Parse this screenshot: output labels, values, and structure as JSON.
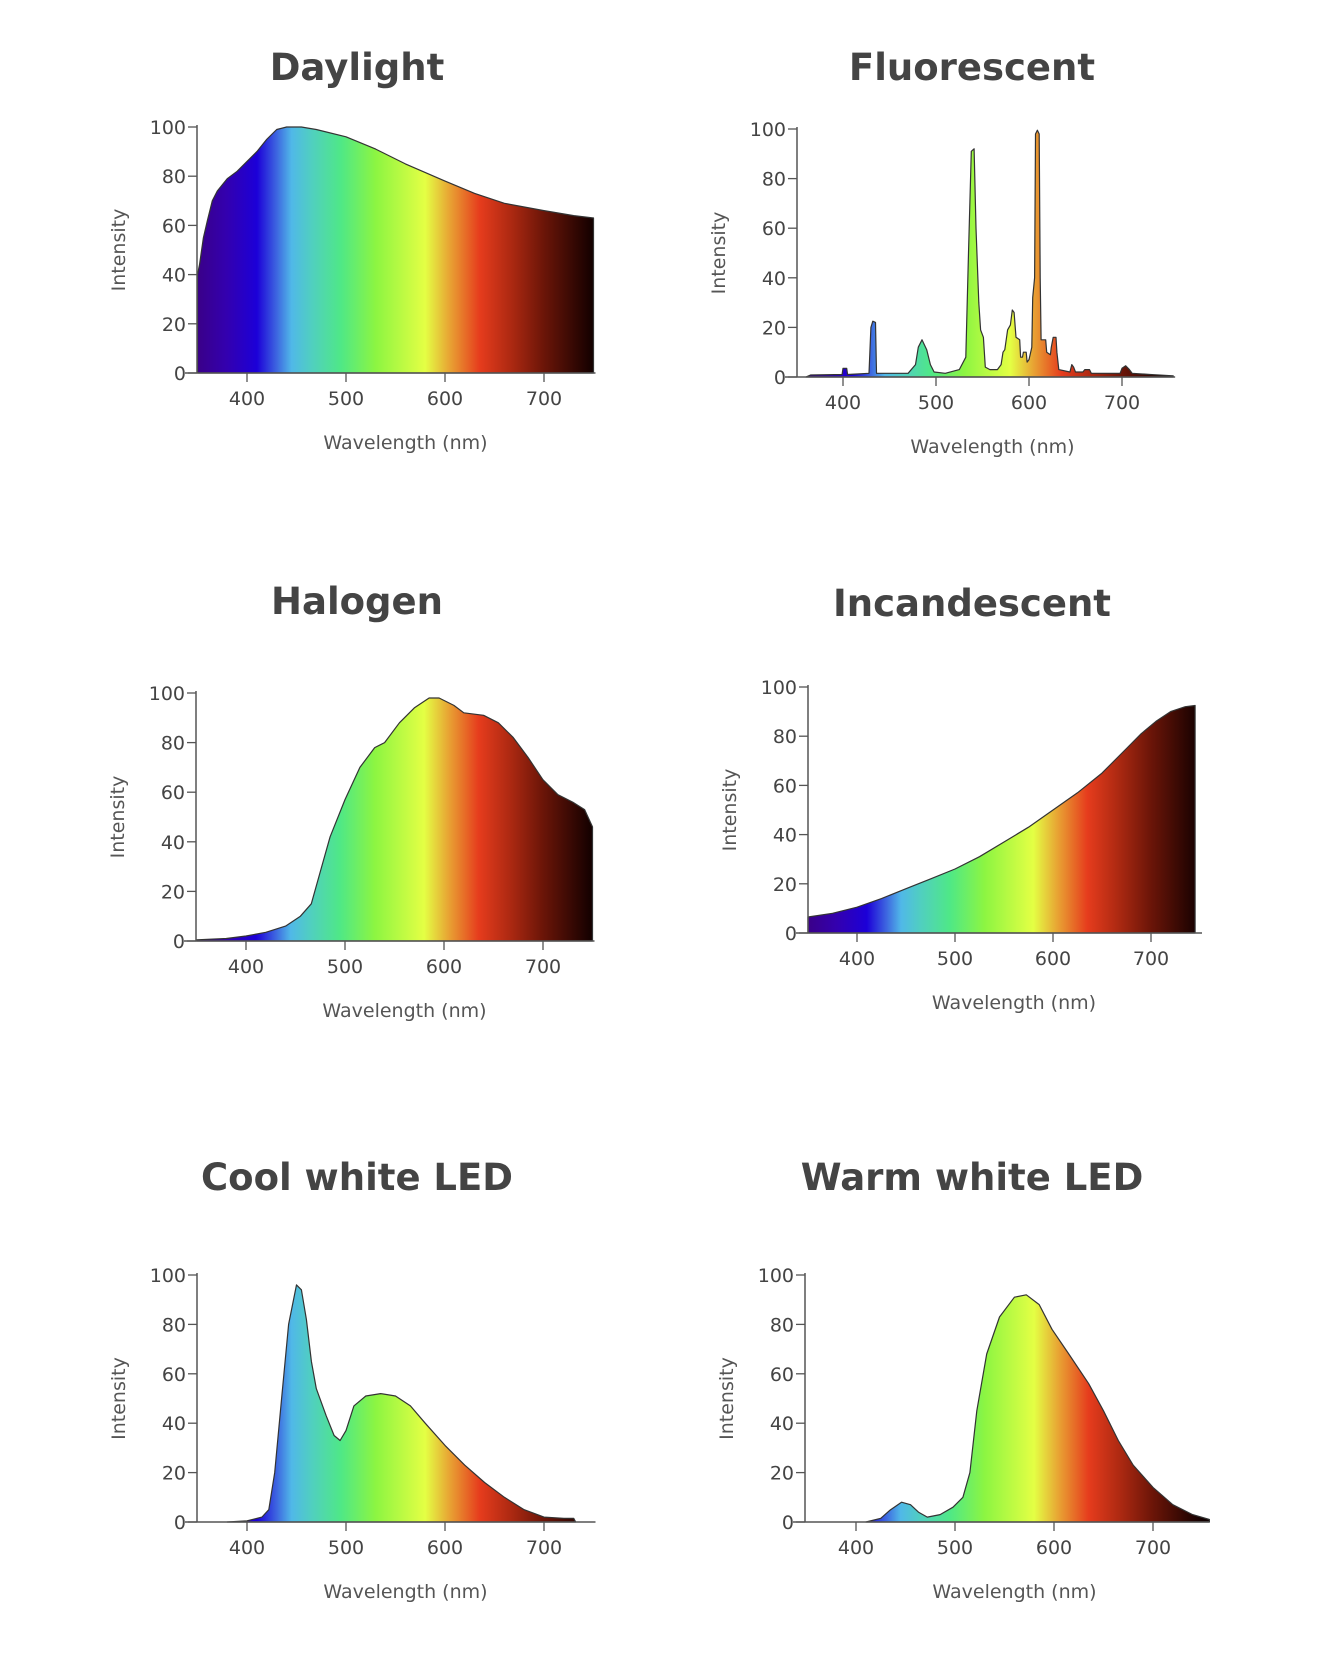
{
  "chart_data": [
    {
      "type": "area",
      "title": "Daylight",
      "xlabel": "Wavelength (nm)",
      "ylabel": "Intensity",
      "xlim": [
        350,
        750
      ],
      "ylim": [
        0,
        100
      ],
      "xticks": [
        400,
        500,
        600,
        700
      ],
      "yticks": [
        0,
        20,
        40,
        60,
        80,
        100
      ],
      "points": [
        [
          350,
          40
        ],
        [
          352,
          44
        ],
        [
          356,
          55
        ],
        [
          360,
          62
        ],
        [
          365,
          70
        ],
        [
          370,
          74
        ],
        [
          380,
          79
        ],
        [
          390,
          82
        ],
        [
          400,
          86
        ],
        [
          410,
          90
        ],
        [
          420,
          95
        ],
        [
          430,
          99
        ],
        [
          440,
          100
        ],
        [
          455,
          100
        ],
        [
          470,
          99
        ],
        [
          500,
          96
        ],
        [
          530,
          91
        ],
        [
          560,
          85
        ],
        [
          600,
          78
        ],
        [
          630,
          73
        ],
        [
          660,
          69
        ],
        [
          700,
          66
        ],
        [
          730,
          64
        ],
        [
          750,
          63
        ]
      ]
    },
    {
      "type": "area",
      "title": "Fluorescent",
      "xlabel": "Wavelength (nm)",
      "ylabel": "Intensity",
      "xlim": [
        350,
        755
      ],
      "ylim": [
        0,
        100
      ],
      "xticks": [
        400,
        500,
        600,
        700
      ],
      "yticks": [
        0,
        20,
        40,
        60,
        80,
        100
      ],
      "points": [
        [
          360,
          0
        ],
        [
          365,
          0.8
        ],
        [
          399,
          1
        ],
        [
          400,
          3.5
        ],
        [
          404,
          3.5
        ],
        [
          405,
          1
        ],
        [
          428,
          1.5
        ],
        [
          430,
          20
        ],
        [
          432,
          22.5
        ],
        [
          435,
          22
        ],
        [
          436,
          1.5
        ],
        [
          470,
          1.5
        ],
        [
          478,
          5
        ],
        [
          481,
          12
        ],
        [
          485,
          15
        ],
        [
          490,
          11
        ],
        [
          494,
          5
        ],
        [
          498,
          2
        ],
        [
          510,
          1.5
        ],
        [
          525,
          3
        ],
        [
          532,
          8
        ],
        [
          535,
          50
        ],
        [
          538,
          91
        ],
        [
          541,
          92
        ],
        [
          543,
          60
        ],
        [
          546,
          30
        ],
        [
          548,
          19
        ],
        [
          551,
          16
        ],
        [
          553,
          4
        ],
        [
          558,
          3
        ],
        [
          566,
          3
        ],
        [
          570,
          5
        ],
        [
          572,
          10
        ],
        [
          574,
          11
        ],
        [
          577,
          19
        ],
        [
          580,
          21
        ],
        [
          582,
          27
        ],
        [
          584,
          26
        ],
        [
          586,
          16
        ],
        [
          590,
          15
        ],
        [
          591,
          8
        ],
        [
          593,
          8
        ],
        [
          594,
          10
        ],
        [
          597,
          10
        ],
        [
          598,
          6
        ],
        [
          600,
          7
        ],
        [
          603,
          12
        ],
        [
          604,
          32
        ],
        [
          606,
          40
        ],
        [
          607,
          98
        ],
        [
          609,
          99.5
        ],
        [
          611,
          98
        ],
        [
          612,
          40
        ],
        [
          613,
          15
        ],
        [
          618,
          15
        ],
        [
          619,
          10
        ],
        [
          623,
          9
        ],
        [
          624,
          12
        ],
        [
          626,
          16
        ],
        [
          629,
          16
        ],
        [
          630,
          10
        ],
        [
          632,
          3
        ],
        [
          644,
          2
        ],
        [
          646,
          5
        ],
        [
          648,
          4
        ],
        [
          650,
          2
        ],
        [
          658,
          2
        ],
        [
          660,
          3
        ],
        [
          665,
          3
        ],
        [
          667,
          1.5
        ],
        [
          698,
          1.5
        ],
        [
          700,
          3.5
        ],
        [
          704,
          4.5
        ],
        [
          708,
          3
        ],
        [
          711,
          1.5
        ],
        [
          730,
          1
        ],
        [
          755,
          0.5
        ]
      ]
    },
    {
      "type": "area",
      "title": "Halogen",
      "xlabel": "Wavelength (nm)",
      "ylabel": "Intensity",
      "xlim": [
        350,
        750
      ],
      "ylim": [
        0,
        100
      ],
      "xticks": [
        400,
        500,
        600,
        700
      ],
      "yticks": [
        0,
        20,
        40,
        60,
        80,
        100
      ],
      "points": [
        [
          350,
          0.5
        ],
        [
          380,
          1
        ],
        [
          400,
          2
        ],
        [
          420,
          3.5
        ],
        [
          440,
          6
        ],
        [
          455,
          10
        ],
        [
          466,
          15
        ],
        [
          475,
          28
        ],
        [
          485,
          42
        ],
        [
          500,
          57
        ],
        [
          515,
          70
        ],
        [
          530,
          78
        ],
        [
          540,
          80
        ],
        [
          555,
          88
        ],
        [
          570,
          94
        ],
        [
          585,
          98
        ],
        [
          595,
          98
        ],
        [
          610,
          95
        ],
        [
          620,
          92
        ],
        [
          640,
          91
        ],
        [
          655,
          88
        ],
        [
          670,
          82
        ],
        [
          685,
          74
        ],
        [
          700,
          65
        ],
        [
          715,
          59
        ],
        [
          730,
          56
        ],
        [
          742,
          53
        ],
        [
          750,
          46
        ]
      ]
    },
    {
      "type": "area",
      "title": "Incandescent",
      "xlabel": "Wavelength (nm)",
      "ylabel": "Intensity",
      "xlim": [
        350,
        750
      ],
      "ylim": [
        0,
        100
      ],
      "xticks": [
        400,
        500,
        600,
        700
      ],
      "yticks": [
        0,
        20,
        40,
        60,
        80,
        100
      ],
      "points": [
        [
          350,
          6.5
        ],
        [
          375,
          8
        ],
        [
          400,
          10.5
        ],
        [
          425,
          14
        ],
        [
          450,
          18
        ],
        [
          475,
          22
        ],
        [
          500,
          26
        ],
        [
          525,
          31
        ],
        [
          550,
          37
        ],
        [
          575,
          43
        ],
        [
          600,
          50
        ],
        [
          625,
          57
        ],
        [
          650,
          65
        ],
        [
          675,
          75
        ],
        [
          690,
          81
        ],
        [
          705,
          86
        ],
        [
          720,
          90
        ],
        [
          735,
          92
        ],
        [
          745,
          92.5
        ]
      ]
    },
    {
      "type": "area",
      "title": "Cool white LED",
      "xlabel": "Wavelength (nm)",
      "ylabel": "Intensity",
      "xlim": [
        350,
        750
      ],
      "ylim": [
        0,
        100
      ],
      "xticks": [
        400,
        500,
        600,
        700
      ],
      "yticks": [
        0,
        20,
        40,
        60,
        80,
        100
      ],
      "points": [
        [
          380,
          0
        ],
        [
          400,
          0.5
        ],
        [
          415,
          2
        ],
        [
          422,
          5
        ],
        [
          428,
          20
        ],
        [
          435,
          50
        ],
        [
          442,
          80
        ],
        [
          450,
          96
        ],
        [
          455,
          94
        ],
        [
          460,
          82
        ],
        [
          465,
          65
        ],
        [
          470,
          54
        ],
        [
          480,
          43
        ],
        [
          488,
          35
        ],
        [
          494,
          33
        ],
        [
          500,
          37
        ],
        [
          508,
          47
        ],
        [
          520,
          51
        ],
        [
          535,
          52
        ],
        [
          550,
          51
        ],
        [
          565,
          47
        ],
        [
          580,
          40
        ],
        [
          600,
          31
        ],
        [
          620,
          23
        ],
        [
          640,
          16
        ],
        [
          660,
          10
        ],
        [
          680,
          5
        ],
        [
          700,
          2
        ],
        [
          720,
          1.5
        ],
        [
          730,
          1.5
        ],
        [
          732,
          0
        ]
      ]
    },
    {
      "type": "area",
      "title": "Warm white LED",
      "xlabel": "Wavelength (nm)",
      "ylabel": "Intensity",
      "xlim": [
        350,
        755
      ],
      "ylim": [
        0,
        100
      ],
      "xticks": [
        400,
        500,
        600,
        700
      ],
      "yticks": [
        0,
        20,
        40,
        60,
        80,
        100
      ],
      "points": [
        [
          410,
          0
        ],
        [
          425,
          1.5
        ],
        [
          435,
          5
        ],
        [
          446,
          8
        ],
        [
          455,
          7
        ],
        [
          463,
          4
        ],
        [
          472,
          2
        ],
        [
          485,
          3
        ],
        [
          498,
          6
        ],
        [
          508,
          10
        ],
        [
          515,
          20
        ],
        [
          522,
          45
        ],
        [
          532,
          68
        ],
        [
          545,
          83
        ],
        [
          560,
          91
        ],
        [
          572,
          92
        ],
        [
          585,
          88
        ],
        [
          598,
          78
        ],
        [
          615,
          68
        ],
        [
          635,
          56
        ],
        [
          650,
          45
        ],
        [
          665,
          33
        ],
        [
          680,
          23
        ],
        [
          700,
          14
        ],
        [
          720,
          7
        ],
        [
          740,
          3
        ],
        [
          757,
          1
        ]
      ]
    }
  ],
  "spectrum_colors": [
    [
      350,
      "#3a0088"
    ],
    [
      380,
      "#3300b0"
    ],
    [
      410,
      "#1c00d8"
    ],
    [
      430,
      "#3d66e0"
    ],
    [
      445,
      "#50b8e8"
    ],
    [
      465,
      "#50cfc0"
    ],
    [
      495,
      "#4fe886"
    ],
    [
      530,
      "#8cf542"
    ],
    [
      580,
      "#e4ff44"
    ],
    [
      605,
      "#e8a233"
    ],
    [
      635,
      "#e63c1d"
    ],
    [
      665,
      "#b02a12"
    ],
    [
      700,
      "#6b1508"
    ],
    [
      750,
      "#120000"
    ]
  ],
  "colors": {
    "axis": "#555555",
    "outline": "#333333",
    "text": "#444444"
  }
}
